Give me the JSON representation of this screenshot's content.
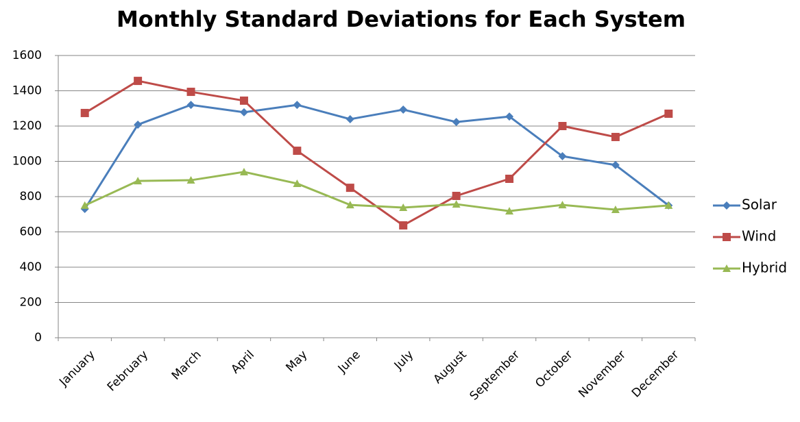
{
  "chart_data": {
    "type": "line",
    "title": "Monthly Standard Deviations for Each System",
    "categories": [
      "January",
      "February",
      "March",
      "April",
      "May",
      "June",
      "July",
      "August",
      "September",
      "October",
      "November",
      "December"
    ],
    "series": [
      {
        "name": "Solar",
        "color": "#4a7ebb",
        "marker": "diamond",
        "values": [
          730,
          1208,
          1320,
          1278,
          1320,
          1239,
          1293,
          1223,
          1254,
          1029,
          979,
          750
        ]
      },
      {
        "name": "Wind",
        "color": "#be4b48",
        "marker": "square",
        "values": [
          1274,
          1456,
          1394,
          1344,
          1060,
          850,
          637,
          804,
          901,
          1200,
          1138,
          1270
        ]
      },
      {
        "name": "Hybrid",
        "color": "#98b954",
        "marker": "triangle",
        "values": [
          750,
          889,
          893,
          940,
          874,
          753,
          738,
          757,
          718,
          753,
          726,
          750
        ]
      }
    ],
    "ylim": [
      0,
      1600
    ],
    "yticks": [
      0,
      200,
      400,
      600,
      800,
      1000,
      1200,
      1400,
      1600
    ],
    "grid": true,
    "legend": "right"
  }
}
